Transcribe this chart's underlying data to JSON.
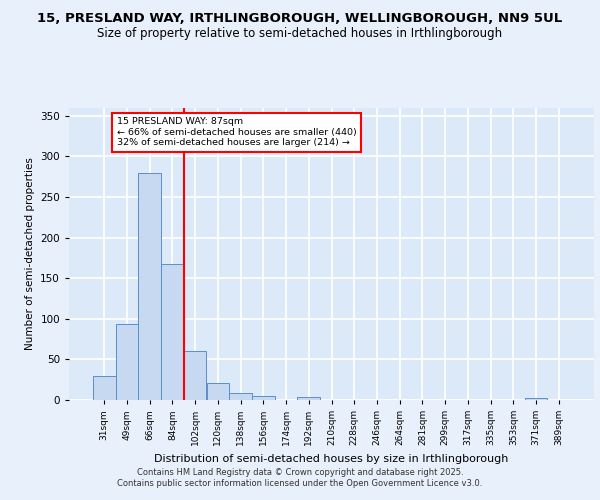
{
  "title1": "15, PRESLAND WAY, IRTHLINGBOROUGH, WELLINGBOROUGH, NN9 5UL",
  "title2": "Size of property relative to semi-detached houses in Irthlingborough",
  "xlabel": "Distribution of semi-detached houses by size in Irthlingborough",
  "ylabel": "Number of semi-detached properties",
  "categories": [
    "31sqm",
    "49sqm",
    "66sqm",
    "84sqm",
    "102sqm",
    "120sqm",
    "138sqm",
    "156sqm",
    "174sqm",
    "192sqm",
    "210sqm",
    "228sqm",
    "246sqm",
    "264sqm",
    "281sqm",
    "299sqm",
    "317sqm",
    "335sqm",
    "353sqm",
    "371sqm",
    "389sqm"
  ],
  "values": [
    30,
    93,
    280,
    167,
    60,
    21,
    9,
    5,
    0,
    4,
    0,
    0,
    0,
    0,
    0,
    0,
    0,
    0,
    0,
    3,
    0
  ],
  "bar_color": "#c6d9f1",
  "bar_edge_color": "#5b8fc9",
  "vline_x": 3.5,
  "vline_color": "red",
  "annotation_title": "15 PRESLAND WAY: 87sqm",
  "annotation_line1": "← 66% of semi-detached houses are smaller (440)",
  "annotation_line2": "32% of semi-detached houses are larger (214) →",
  "annotation_box_color": "#ffffff",
  "annotation_box_edge": "red",
  "footer1": "Contains HM Land Registry data © Crown copyright and database right 2025.",
  "footer2": "Contains public sector information licensed under the Open Government Licence v3.0.",
  "ylim": [
    0,
    360
  ],
  "yticks": [
    0,
    50,
    100,
    150,
    200,
    250,
    300,
    350
  ],
  "background_color": "#dce9f8",
  "fig_background_color": "#e8f0fb",
  "grid_color": "#ffffff",
  "title_fontsize": 9.5,
  "subtitle_fontsize": 8.5,
  "title_color": "#000000"
}
